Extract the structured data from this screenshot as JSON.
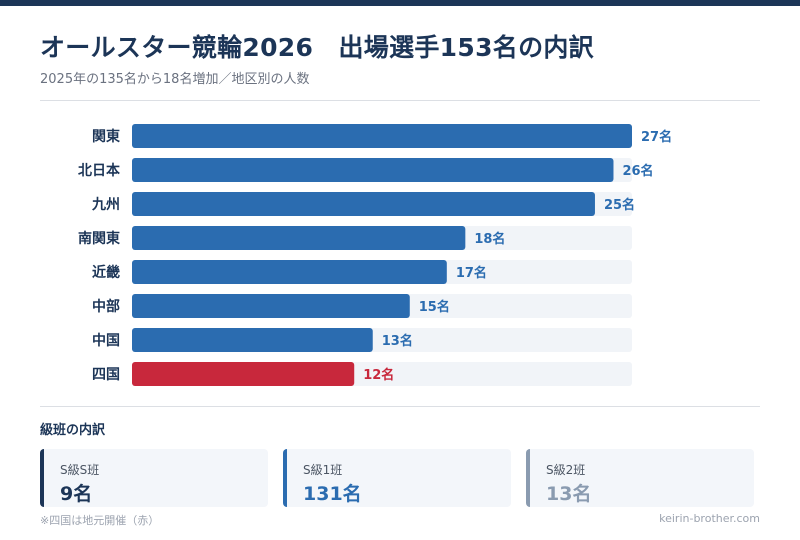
{
  "header": {
    "title": "オールスター競輪2026　出場選手153名の内訳",
    "subtitle": "2025年の135名から18名増加／地区別の人数"
  },
  "colors": {
    "bar_default": "#2b6cb0",
    "bar_highlight": "#c8283c",
    "track": "#f1f4f8",
    "label_default": "#2b6cb0",
    "label_highlight": "#c8283c",
    "card_accent_1": "#1c3557",
    "card_accent_2": "#2b6cb0",
    "card_accent_3": "#8a9bb0"
  },
  "chart_data": {
    "type": "bar",
    "orientation": "horizontal",
    "categories": [
      "関東",
      "北日本",
      "九州",
      "南関東",
      "近畿",
      "中部",
      "中国",
      "四国"
    ],
    "values": [
      27,
      26,
      25,
      18,
      17,
      15,
      13,
      12
    ],
    "value_labels": [
      "27名",
      "26名",
      "25名",
      "18名",
      "17名",
      "15名",
      "13名",
      "12名"
    ],
    "highlight": [
      "四国"
    ],
    "xlim": [
      0,
      27
    ],
    "grid": false,
    "title": "",
    "xlabel": "",
    "ylabel": ""
  },
  "breakdown": {
    "title": "級班の内訳",
    "cards": [
      {
        "label": "S級S班",
        "value": "9名",
        "value_color": "#1c3557"
      },
      {
        "label": "S級1班",
        "value": "131名",
        "value_color": "#2b6cb0"
      },
      {
        "label": "S級2班",
        "value": "13名",
        "value_color": "#8a9bb0"
      }
    ]
  },
  "footer": {
    "note": "※四国は地元開催（赤）",
    "credit": "keirin-brother.com"
  }
}
